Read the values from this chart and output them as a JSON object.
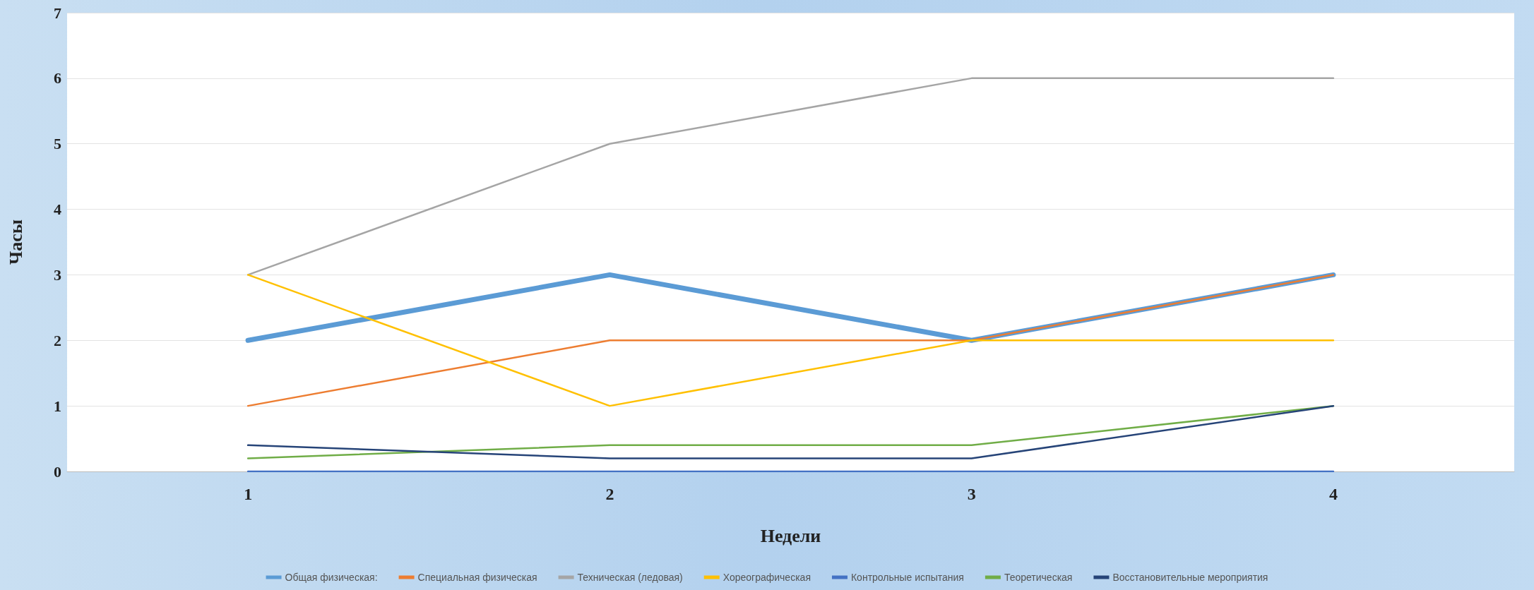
{
  "chart_data": {
    "type": "line",
    "xlabel": "Недели",
    "ylabel": "Часы",
    "categories": [
      "1",
      "2",
      "3",
      "4"
    ],
    "series": [
      {
        "name": "Общая физическая:",
        "color": "#5b9bd5",
        "values": [
          2,
          3,
          2,
          3
        ]
      },
      {
        "name": "Специальная физическая",
        "color": "#ed7d31",
        "values": [
          1,
          2,
          2,
          3
        ]
      },
      {
        "name": "Техническая (ледовая)",
        "color": "#a5a5a5",
        "values": [
          3,
          5,
          6,
          6
        ]
      },
      {
        "name": "Хореографическая",
        "color": "#ffc000",
        "values": [
          3,
          1,
          2,
          2
        ]
      },
      {
        "name": "Контрольные испытания",
        "color": "#4472c4",
        "values": [
          0,
          0,
          0,
          0
        ]
      },
      {
        "name": "Теоретическая",
        "color": "#70ad47",
        "values": [
          0.2,
          0.4,
          0.4,
          1
        ]
      },
      {
        "name": "Восстановительные мероприятия",
        "color": "#264478",
        "values": [
          0.4,
          0.2,
          0.2,
          1
        ]
      }
    ],
    "ylim": [
      0,
      7
    ],
    "yticks": [
      0,
      1,
      2,
      3,
      4,
      5,
      6,
      7
    ],
    "grid": "y",
    "legend": "bottom",
    "marker": "none",
    "line_style": "solid"
  }
}
